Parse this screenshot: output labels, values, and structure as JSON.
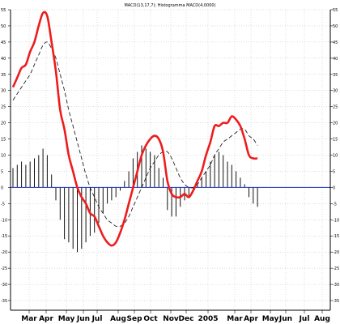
{
  "chart_data": {
    "type": "line",
    "title": "MACD(13,17,7); Histogramma MACD(4,0000)",
    "xlabel": "",
    "ylabel": "",
    "ylim": [
      -38,
      55
    ],
    "grid": true,
    "y_ticks": [
      -35,
      -30,
      -25,
      -20,
      -15,
      -10,
      -5,
      0,
      5,
      10,
      15,
      20,
      25,
      30,
      35,
      40,
      45,
      50,
      55
    ],
    "x_tick_labels": [
      "Mar",
      "Apr",
      "May",
      "Jun",
      "Jul",
      "Aug",
      "Sep",
      "Oct",
      "Nov",
      "Dec",
      "2005",
      "Mar",
      "Apr",
      "May",
      "Jun",
      "Jul",
      "Aug"
    ],
    "series": [
      {
        "role": "macd",
        "color": "#ee1c1c",
        "values": [
          31,
          34,
          37,
          38,
          42,
          45,
          50,
          54,
          53,
          45,
          36,
          24,
          18,
          10,
          5,
          0,
          -3,
          -5,
          -8,
          -9,
          -12,
          -15,
          -17,
          -18,
          -17,
          -14,
          -10,
          -5,
          0,
          5,
          10,
          13,
          15,
          16,
          15,
          11,
          2,
          -2,
          -3,
          -3,
          -2,
          -3,
          -1,
          2,
          5,
          10,
          14,
          19,
          19,
          20,
          20,
          22,
          21,
          19,
          15,
          10,
          9,
          9
        ]
      },
      {
        "role": "signal",
        "color": "#222222",
        "values": [
          27,
          29,
          31,
          33,
          35,
          38,
          41,
          44,
          45,
          43,
          40,
          35,
          30,
          24,
          19,
          14,
          9,
          4,
          0,
          -3,
          -6,
          -8,
          -10,
          -11,
          -12,
          -12,
          -11,
          -9,
          -6,
          -3,
          0,
          3,
          6,
          8,
          10,
          11,
          11,
          9,
          6,
          3,
          1,
          0,
          0,
          1,
          3,
          5,
          7,
          10,
          12,
          14,
          15,
          16,
          17,
          18,
          18,
          16,
          15,
          13
        ]
      },
      {
        "role": "histogram",
        "color": "#111111",
        "values": [
          6,
          7,
          8,
          7,
          8,
          9,
          10,
          12,
          10,
          4,
          -4,
          -10,
          -16,
          -17,
          -19,
          -20,
          -19,
          -17,
          -15,
          -14,
          -11,
          -8,
          -5,
          -4,
          -3,
          -1,
          2,
          5,
          9,
          11,
          13,
          12,
          11,
          10,
          6,
          3,
          -7,
          -9,
          -9,
          -6,
          -4,
          -3,
          -1,
          1,
          3,
          5,
          8,
          10,
          11,
          10,
          8,
          7,
          5,
          3,
          1,
          -3,
          -5,
          -6
        ]
      }
    ],
    "zero_line_color": "#1a2fc4"
  }
}
